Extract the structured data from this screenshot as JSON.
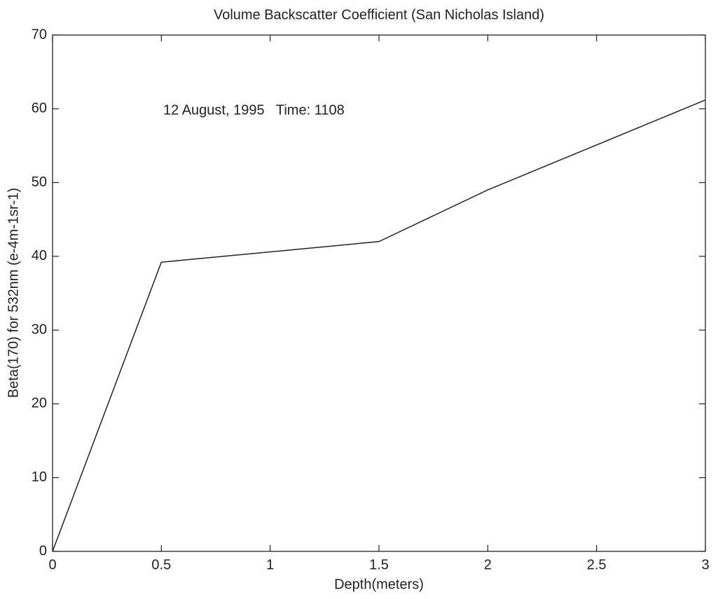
{
  "chart_data": {
    "type": "line",
    "title": "Volume Backscatter Coefficient (San Nicholas Island)",
    "annotation": "12 August, 1995   Time: 1108",
    "xlabel": "Depth(meters)",
    "ylabel": "Beta(170) for 532nm (e-4m-1sr-1)",
    "x": [
      0,
      0.5,
      1.5,
      2,
      3
    ],
    "series": [
      {
        "name": "Beta(170)",
        "color": "#222222",
        "values": [
          0,
          39.2,
          42,
          49,
          61.2
        ]
      }
    ],
    "xlim": [
      0,
      3
    ],
    "xticks": [
      0,
      0.5,
      1,
      1.5,
      2,
      2.5,
      3
    ],
    "ylim": [
      0,
      70
    ],
    "yticks": [
      0,
      10,
      20,
      30,
      40,
      50,
      60,
      70
    ],
    "grid": false
  }
}
